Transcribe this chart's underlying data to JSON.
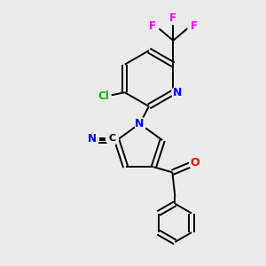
{
  "background_color": "#ebebeb",
  "bond_color": "#000000",
  "atom_colors": {
    "N": "#0000ff",
    "O": "#ff0000",
    "F": "#ff00ff",
    "Cl": "#00bb00",
    "C": "#000000"
  },
  "figsize": [
    3.0,
    3.0
  ],
  "dpi": 100
}
